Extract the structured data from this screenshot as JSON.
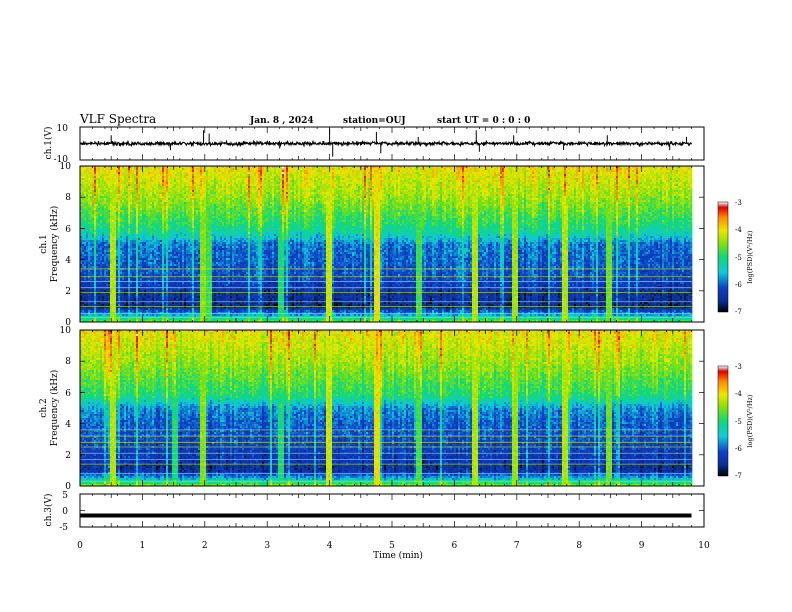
{
  "header": {
    "title": "VLF Spectra",
    "date": "Jan. 8 , 2024",
    "station": "station=OUJ",
    "start": "start UT = 0 : 0 : 0"
  },
  "colors": {
    "black": "#000000",
    "background": "#ffffff",
    "colormap": [
      "#000000",
      "#0a2f8f",
      "#1040c8",
      "#12c8d8",
      "#10d878",
      "#7fe014",
      "#e8e800",
      "#ff8a00",
      "#e00000",
      "#ffffff"
    ]
  },
  "chart_data": [
    {
      "type": "line",
      "name": "ch1-waveform",
      "ylabel": "ch.1(V)",
      "xlim": [
        0,
        10
      ],
      "ylim": [
        -10,
        10
      ],
      "yticks": [
        "10",
        "-10"
      ],
      "baseline": 0,
      "trace_x_end": 9.8,
      "spikes": [
        {
          "x": 0.5,
          "y": 5
        },
        {
          "x": 1.45,
          "y": -4
        },
        {
          "x": 1.98,
          "y": 8
        },
        {
          "x": 2.07,
          "y": 6
        },
        {
          "x": 3.2,
          "y": -3
        },
        {
          "x": 4.0,
          "y": 9
        },
        {
          "x": 4.05,
          "y": -8
        },
        {
          "x": 4.75,
          "y": 7
        },
        {
          "x": 4.82,
          "y": -6
        },
        {
          "x": 5.42,
          "y": 4
        },
        {
          "x": 6.35,
          "y": 8
        },
        {
          "x": 6.4,
          "y": -5
        },
        {
          "x": 6.95,
          "y": 5
        },
        {
          "x": 7.75,
          "y": -4
        },
        {
          "x": 8.45,
          "y": 5
        },
        {
          "x": 9.45,
          "y": -4
        },
        {
          "x": 9.72,
          "y": 4
        }
      ]
    },
    {
      "type": "heatmap",
      "name": "ch1-spectrogram",
      "ylabel": "ch.1",
      "ylabel2": "Frequency (kHz)",
      "xlim": [
        0,
        10
      ],
      "ylim": [
        0,
        10
      ],
      "yticks": [
        "0",
        "2",
        "4",
        "6",
        "8",
        "10"
      ],
      "data_x_end": 9.8,
      "colorbar": {
        "label": "log(PSD)(V²/Hz)",
        "range": [
          -7,
          -3
        ],
        "ticks": [
          "-3",
          "-4",
          "-5",
          "-6",
          "-7"
        ]
      },
      "level_profile": [
        {
          "f": 0,
          "log_psd": -4.6
        },
        {
          "f": 0.4,
          "log_psd": -5.6
        },
        {
          "f": 1.0,
          "log_psd": -6.6
        },
        {
          "f": 2.0,
          "log_psd": -6.4
        },
        {
          "f": 3.0,
          "log_psd": -6.1
        },
        {
          "f": 4.0,
          "log_psd": -6.0
        },
        {
          "f": 5.0,
          "log_psd": -5.9
        },
        {
          "f": 5.8,
          "log_psd": -5.2
        },
        {
          "f": 6.5,
          "log_psd": -4.9
        },
        {
          "f": 8.0,
          "log_psd": -4.4
        },
        {
          "f": 10.0,
          "log_psd": -4.0
        }
      ],
      "line_frequencies": [
        0.3,
        0.55,
        1.0,
        1.3,
        1.9,
        2.2,
        2.6,
        2.9,
        3.4
      ],
      "bursts": [
        {
          "t": 0.52,
          "log_psd": -4.3
        },
        {
          "t": 1.97,
          "log_psd": -4.5
        },
        {
          "t": 2.05,
          "log_psd": -4.8
        },
        {
          "t": 3.2,
          "log_psd": -5.0
        },
        {
          "t": 3.98,
          "log_psd": -4.2
        },
        {
          "t": 4.75,
          "log_psd": -4.0
        },
        {
          "t": 5.42,
          "log_psd": -4.8
        },
        {
          "t": 6.33,
          "log_psd": -4.3
        },
        {
          "t": 6.95,
          "log_psd": -4.4
        },
        {
          "t": 7.75,
          "log_psd": -4.3
        },
        {
          "t": 8.45,
          "log_psd": -4.6
        }
      ]
    },
    {
      "type": "heatmap",
      "name": "ch2-spectrogram",
      "ylabel": "ch.2",
      "ylabel2": "Frequency (kHz)",
      "xlim": [
        0,
        10
      ],
      "ylim": [
        0,
        10
      ],
      "yticks": [
        "0",
        "2",
        "4",
        "6",
        "8",
        "10"
      ],
      "data_x_end": 9.8,
      "colorbar": {
        "label": "log(PSD)(V²/Hz)",
        "range": [
          -7,
          -3
        ],
        "ticks": [
          "-3",
          "-4",
          "-5",
          "-6",
          "-7"
        ]
      },
      "level_profile": [
        {
          "f": 0,
          "log_psd": -4.5
        },
        {
          "f": 0.4,
          "log_psd": -5.5
        },
        {
          "f": 1.0,
          "log_psd": -6.5
        },
        {
          "f": 2.0,
          "log_psd": -6.3
        },
        {
          "f": 3.0,
          "log_psd": -6.1
        },
        {
          "f": 4.0,
          "log_psd": -6.0
        },
        {
          "f": 5.0,
          "log_psd": -5.8
        },
        {
          "f": 5.8,
          "log_psd": -5.0
        },
        {
          "f": 6.5,
          "log_psd": -4.8
        },
        {
          "f": 8.0,
          "log_psd": -4.4
        },
        {
          "f": 10.0,
          "log_psd": -4.0
        }
      ],
      "line_frequencies": [
        0.3,
        0.8,
        1.4,
        1.7,
        2.1,
        2.5,
        2.8,
        3.2,
        3.6
      ],
      "bursts": [
        {
          "t": 0.52,
          "log_psd": -4.3
        },
        {
          "t": 1.5,
          "log_psd": -5.0
        },
        {
          "t": 1.97,
          "log_psd": -4.5
        },
        {
          "t": 3.2,
          "log_psd": -5.0
        },
        {
          "t": 3.98,
          "log_psd": -4.2
        },
        {
          "t": 4.75,
          "log_psd": -4.0
        },
        {
          "t": 5.42,
          "log_psd": -4.8
        },
        {
          "t": 6.33,
          "log_psd": -4.3
        },
        {
          "t": 6.95,
          "log_psd": -4.4
        },
        {
          "t": 7.75,
          "log_psd": -4.3
        },
        {
          "t": 8.45,
          "log_psd": -4.6
        }
      ]
    },
    {
      "type": "line",
      "name": "ch3-waveform",
      "ylabel": "ch.3(V)",
      "xlabel": "Time (min)",
      "xlim": [
        0,
        10
      ],
      "ylim": [
        -5,
        5
      ],
      "yticks": [
        "5",
        "0",
        "-5"
      ],
      "xticks": [
        "0",
        "1",
        "2",
        "3",
        "4",
        "5",
        "6",
        "7",
        "8",
        "9",
        "10"
      ],
      "baseline": -1.5,
      "trace_x_end": 9.8
    }
  ]
}
